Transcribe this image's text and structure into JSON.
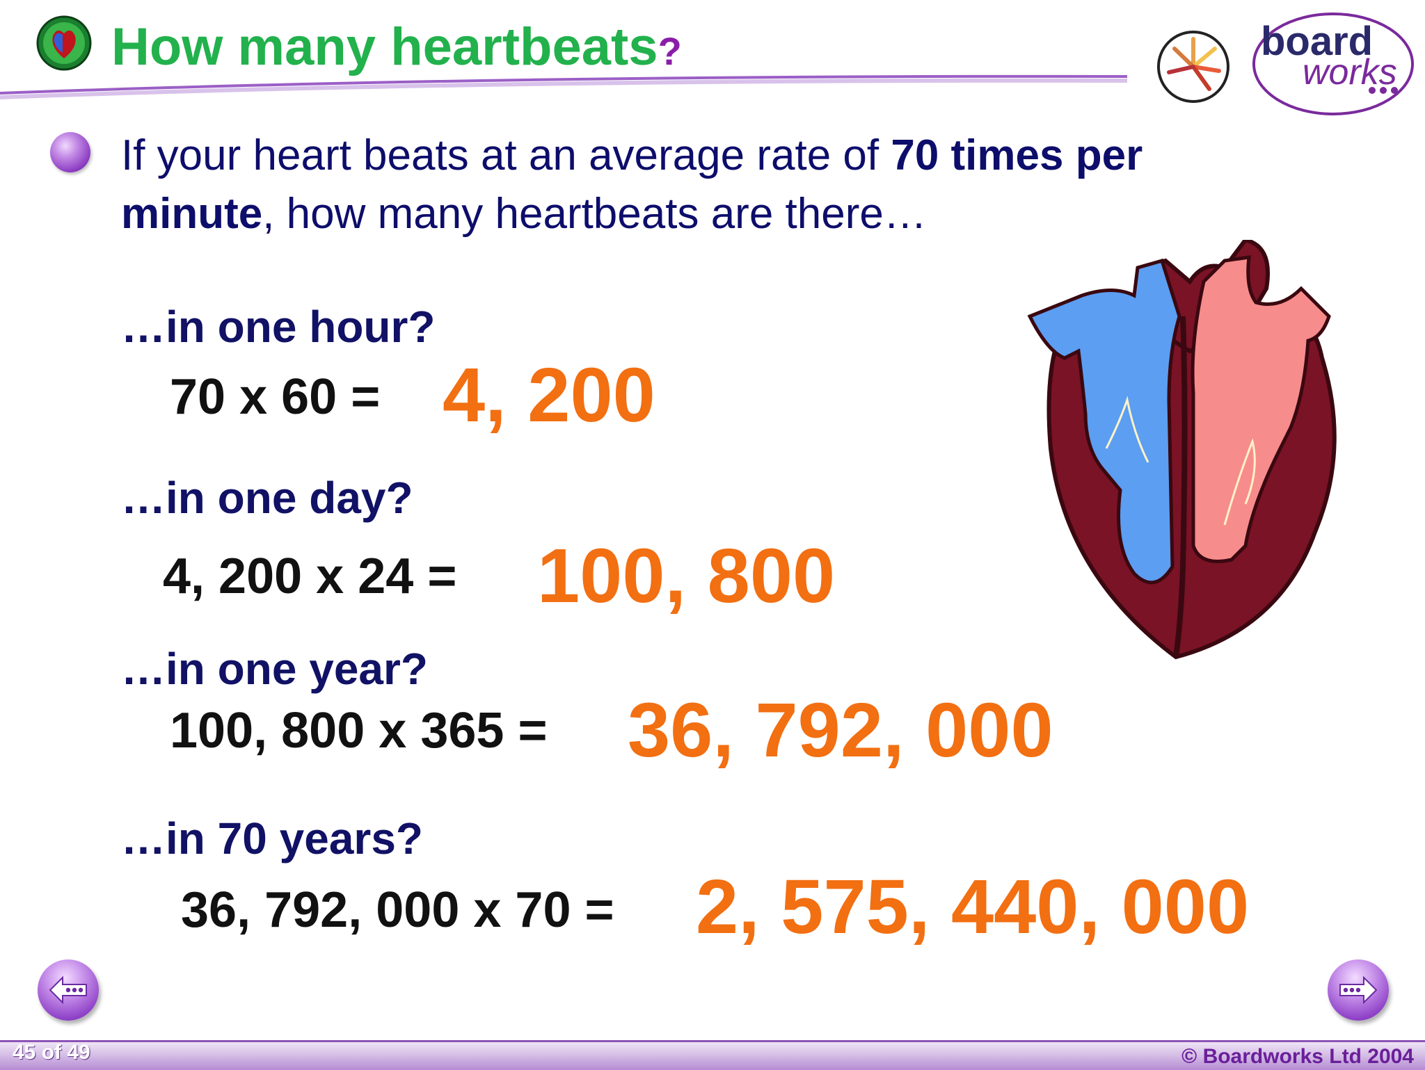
{
  "header": {
    "title": "How many heartbeats",
    "title_question_mark": "?",
    "logo_top": "board",
    "logo_bottom": "works"
  },
  "intro": {
    "part1": "If your heart beats at an average rate of ",
    "bold1": "70 times per minute",
    "part2": ", how many heartbeats are there…"
  },
  "questions": [
    {
      "label": "…in one hour?",
      "calculation": "70 x 60  =",
      "answer": "4, 200"
    },
    {
      "label": "…in one day?",
      "calculation": "4, 200 x 24  =",
      "answer": "100, 800"
    },
    {
      "label": "…in one year?",
      "calculation": "100, 800 x 365  =",
      "answer": "36, 792, 000"
    },
    {
      "label": "…in 70 years?",
      "calculation": "36, 792, 000 x 70  =",
      "answer": "2, 575, 440, 000"
    }
  ],
  "footer": {
    "page_indicator": "45 of 49",
    "copyright": "© Boardworks Ltd 2004"
  },
  "colors": {
    "title": "#22b14c",
    "answer": "#f26f12",
    "question": "#111166",
    "accent_purple": "#8d53b7"
  },
  "icons": {
    "title_icon": "heart-globe-icon",
    "bullet": "purple-bullet-icon",
    "prev": "previous-arrow-icon",
    "next": "next-arrow-icon"
  }
}
